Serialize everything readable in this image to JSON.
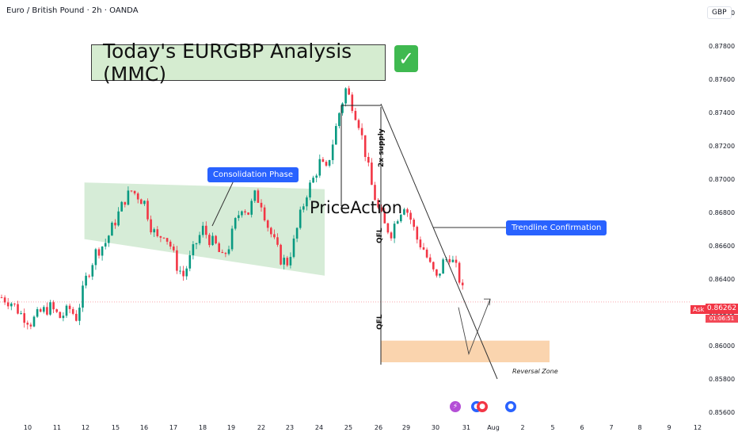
{
  "header": {
    "symbol_line": "Euro / British Pound · 2h · OANDA",
    "currency": "GBP"
  },
  "annotations": {
    "title": "Today's EURGBP Analysis (MMC)",
    "check_icon": "check-mark-icon",
    "consolidation": "Consolidation Phase",
    "price_action": "PriceAction",
    "trendline": "Trendline Confirmation",
    "supply": "2x supply",
    "qfl_top": "QFL",
    "qfl_bottom": "QFL",
    "reversal_zone": "Reversal Zone"
  },
  "price_scale": {
    "ask_label": "Ask",
    "last_price": "0.86262",
    "countdown": "01:06:51"
  },
  "colors": {
    "bull": "#089981",
    "bear": "#f23645",
    "consolidation_zone": "#c8e6c9",
    "reversal_zone": "#f9cfa5",
    "label_blue": "#2962ff",
    "title_fill": "#d5ecd0"
  },
  "chart_data": {
    "type": "candlestick",
    "symbol": "EURGBP",
    "timeframe": "2h",
    "y_ticks": [
      "0.88000",
      "0.87800",
      "0.87600",
      "0.87400",
      "0.87200",
      "0.87000",
      "0.86800",
      "0.86600",
      "0.86400",
      "0.86200",
      "0.86000",
      "0.85800",
      "0.85600"
    ],
    "ylim": [
      0.8552,
      0.8822
    ],
    "x_ticks": [
      "10",
      "11",
      "12",
      "15",
      "16",
      "17",
      "18",
      "19",
      "22",
      "23",
      "24",
      "25",
      "26",
      "29",
      "30",
      "31",
      "Aug",
      "2",
      "5",
      "6",
      "7",
      "8",
      "9",
      "12"
    ],
    "last_price": 0.86262,
    "path_points": [
      [
        0,
        0.8629
      ],
      [
        3,
        0.8626
      ],
      [
        6,
        0.8619
      ],
      [
        9,
        0.8614
      ],
      [
        12,
        0.862
      ],
      [
        15,
        0.8623
      ],
      [
        18,
        0.8617
      ],
      [
        21,
        0.8622
      ],
      [
        23,
        0.8617
      ],
      [
        26,
        0.864
      ],
      [
        29,
        0.8656
      ],
      [
        32,
        0.8662
      ],
      [
        35,
        0.8675
      ],
      [
        38,
        0.8688
      ],
      [
        40,
        0.8693
      ],
      [
        42,
        0.869
      ],
      [
        44,
        0.8686
      ],
      [
        46,
        0.8672
      ],
      [
        48,
        0.8664
      ],
      [
        50,
        0.8668
      ],
      [
        52,
        0.866
      ],
      [
        54,
        0.8648
      ],
      [
        56,
        0.8642
      ],
      [
        58,
        0.8652
      ],
      [
        60,
        0.8662
      ],
      [
        62,
        0.867
      ],
      [
        64,
        0.8664
      ],
      [
        66,
        0.866
      ],
      [
        68,
        0.8652
      ],
      [
        70,
        0.866
      ],
      [
        72,
        0.8674
      ],
      [
        74,
        0.8684
      ],
      [
        76,
        0.868
      ],
      [
        78,
        0.869
      ],
      [
        80,
        0.8686
      ],
      [
        82,
        0.8672
      ],
      [
        84,
        0.8662
      ],
      [
        86,
        0.8652
      ],
      [
        88,
        0.865
      ],
      [
        90,
        0.8662
      ],
      [
        92,
        0.8678
      ],
      [
        94,
        0.8692
      ],
      [
        96,
        0.87
      ],
      [
        98,
        0.871
      ],
      [
        100,
        0.8705
      ],
      [
        102,
        0.8722
      ],
      [
        104,
        0.874
      ],
      [
        106,
        0.8754
      ],
      [
        108,
        0.8745
      ],
      [
        110,
        0.8734
      ],
      [
        112,
        0.8716
      ],
      [
        114,
        0.8696
      ],
      [
        116,
        0.8682
      ],
      [
        118,
        0.8672
      ],
      [
        120,
        0.8668
      ],
      [
        122,
        0.8678
      ],
      [
        124,
        0.8685
      ],
      [
        126,
        0.8676
      ],
      [
        128,
        0.8664
      ],
      [
        130,
        0.8658
      ],
      [
        132,
        0.8648
      ],
      [
        134,
        0.864
      ],
      [
        136,
        0.865
      ],
      [
        138,
        0.8654
      ],
      [
        140,
        0.8646
      ],
      [
        141,
        0.864
      ],
      [
        143,
        0.8626
      ]
    ],
    "consolidation_zone": {
      "x": [
        26,
        100
      ],
      "y_top": [
        0.8698,
        0.8694
      ],
      "y_bottom": [
        0.8664,
        0.8642
      ]
    },
    "reversal_zone": {
      "y": [
        0.859,
        0.8603
      ]
    },
    "projection": [
      0.8623,
      0.8595,
      0.8628
    ]
  }
}
